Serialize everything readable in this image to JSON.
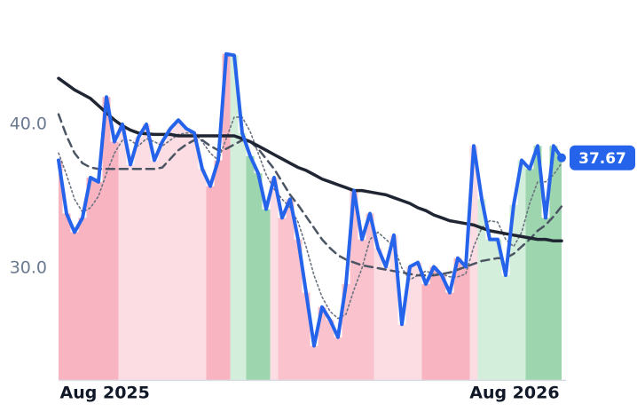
{
  "chart_data": {
    "type": "line",
    "xlim": [
      0,
      63
    ],
    "ylim": [
      22.2,
      46.2
    ],
    "xticks": [
      {
        "value": 5.8,
        "label": "Aug 2025"
      },
      {
        "value": 57.1,
        "label": "Aug 2026"
      }
    ],
    "yticks": [
      {
        "value": 30,
        "label": "30.0"
      },
      {
        "value": 40,
        "label": "40.0"
      }
    ],
    "x": [
      0,
      1,
      2,
      3,
      4,
      5,
      6,
      7,
      8,
      9,
      10,
      11,
      12,
      13,
      14,
      15,
      16,
      17,
      18,
      19,
      20,
      21,
      22,
      23,
      24,
      25,
      26,
      27,
      28,
      29,
      30,
      31,
      32,
      33,
      34,
      35,
      36,
      37,
      38,
      39,
      40,
      41,
      42,
      43,
      44,
      45,
      46,
      47,
      48,
      49,
      50,
      51,
      52,
      53,
      54,
      55,
      56,
      57,
      58,
      59,
      60,
      61,
      62,
      63
    ],
    "series": [
      {
        "color": "#2563eb",
        "dash": "solid",
        "values": [
          37.5,
          33.8,
          32.5,
          33.5,
          36.3,
          36.0,
          41.9,
          38.8,
          40.0,
          37.2,
          39.1,
          40.0,
          37.5,
          38.8,
          39.7,
          40.3,
          39.7,
          39.4,
          36.9,
          35.7,
          37.5,
          44.9,
          44.8,
          39.4,
          37.8,
          36.6,
          34.1,
          36.3,
          33.5,
          34.8,
          32.0,
          28.3,
          24.6,
          27.3,
          26.4,
          25.2,
          28.9,
          35.4,
          32.0,
          33.8,
          31.4,
          30.1,
          32.3,
          26.1,
          30.1,
          30.4,
          28.9,
          30.1,
          29.5,
          28.3,
          30.7,
          30.1,
          38.5,
          34.8,
          32.0,
          32.0,
          29.5,
          34.4,
          37.5,
          36.9,
          38.5,
          33.5,
          38.5,
          37.67
        ],
        "bar_colors": [
          "#f9b4c1",
          "#f9b4c1",
          "#f9b4c1",
          "#f9b4c1",
          "#f9b4c1",
          "#f9b4c1",
          "#f9b4c1",
          "#f9b4c1",
          "#fcdde3",
          "#fcdde3",
          "#fcdde3",
          "#fcdde3",
          "#fcdde3",
          "#fcdde3",
          "#fcdde3",
          "#fcdde3",
          "#fcdde3",
          "#fcdde3",
          "#fcdde3",
          "#f9b4c1",
          "#f9b4c1",
          "#f9b4c1",
          "#d4eedc",
          "#d4eedc",
          "#9dd6ae",
          "#9dd6ae",
          "#9dd6ae",
          "#fcdde3",
          "#f9c2cc",
          "#f9c2cc",
          "#f9c2cc",
          "#f9c2cc",
          "#f9c2cc",
          "#f9c2cc",
          "#f9c2cc",
          "#f9c2cc",
          "#f9c2cc",
          "#f9c2cc",
          "#f9c2cc",
          "#f9c2cc",
          "#fcdde3",
          "#fcdde3",
          "#fcdde3",
          "#fcdde3",
          "#fcdde3",
          "#fcdde3",
          "#f9b4c1",
          "#f9b4c1",
          "#f9b4c1",
          "#f9b4c1",
          "#f9b4c1",
          "#f9b4c1",
          "#fcdde3",
          "#d4eedc",
          "#d4eedc",
          "#d4eedc",
          "#d4eedc",
          "#d4eedc",
          "#d4eedc",
          "#9dd6ae",
          "#9dd6ae",
          "#9dd6ae",
          "#9dd6ae",
          "#9dd6ae"
        ]
      },
      {
        "color": "#1f2533",
        "dash": "solid",
        "values": [
          43.2,
          42.8,
          42.4,
          42.1,
          41.8,
          41.3,
          40.8,
          40.3,
          39.9,
          39.6,
          39.4,
          39.35,
          39.3,
          39.3,
          39.3,
          39.2,
          39.2,
          39.2,
          39.2,
          39.2,
          39.2,
          39.2,
          39.2,
          39.0,
          38.8,
          38.5,
          38.2,
          37.9,
          37.6,
          37.3,
          37.0,
          36.8,
          36.5,
          36.2,
          36.0,
          35.8,
          35.6,
          35.4,
          35.4,
          35.3,
          35.2,
          35.1,
          34.9,
          34.7,
          34.5,
          34.2,
          34.0,
          33.7,
          33.5,
          33.3,
          33.2,
          33.1,
          33.0,
          32.8,
          32.6,
          32.5,
          32.4,
          32.3,
          32.2,
          32.1,
          32.0,
          32.0,
          31.9,
          31.9
        ]
      },
      {
        "color": "#4b5563",
        "dash": "dashed",
        "values": [
          40.7,
          39.2,
          38.0,
          37.3,
          37.0,
          36.9,
          36.9,
          36.9,
          36.9,
          36.9,
          36.9,
          36.9,
          36.9,
          37.0,
          37.6,
          38.2,
          38.6,
          38.9,
          38.9,
          38.5,
          38.2,
          38.3,
          38.6,
          38.9,
          38.8,
          38.3,
          37.6,
          36.9,
          36.0,
          35.1,
          34.4,
          33.6,
          32.8,
          32.0,
          31.4,
          30.9,
          30.6,
          30.4,
          30.2,
          30.1,
          30.0,
          29.9,
          29.8,
          29.7,
          29.6,
          29.5,
          29.5,
          29.5,
          29.6,
          29.7,
          29.9,
          30.1,
          30.3,
          30.5,
          30.6,
          30.7,
          30.7,
          31.0,
          31.5,
          32.0,
          32.6,
          33.0,
          33.6,
          34.3
        ]
      },
      {
        "color": "#6b7280",
        "dash": "dotted",
        "values": [
          38.0,
          36.5,
          34.8,
          33.9,
          34.2,
          35.0,
          36.6,
          38.0,
          38.9,
          38.9,
          38.5,
          39.0,
          38.8,
          38.5,
          38.9,
          39.3,
          39.4,
          39.4,
          38.8,
          38.0,
          37.5,
          39.0,
          40.5,
          40.5,
          39.5,
          38.0,
          36.5,
          35.5,
          34.8,
          34.2,
          33.2,
          31.5,
          29.5,
          28.0,
          27.0,
          26.5,
          26.8,
          28.5,
          30.0,
          32.0,
          32.5,
          32.0,
          31.5,
          30.0,
          29.2,
          29.5,
          29.8,
          29.6,
          29.6,
          29.4,
          29.4,
          29.6,
          31.5,
          32.8,
          33.3,
          33.2,
          32.0,
          31.5,
          32.5,
          34.5,
          36.0,
          36.0,
          36.5,
          37.3
        ]
      }
    ]
  }
}
